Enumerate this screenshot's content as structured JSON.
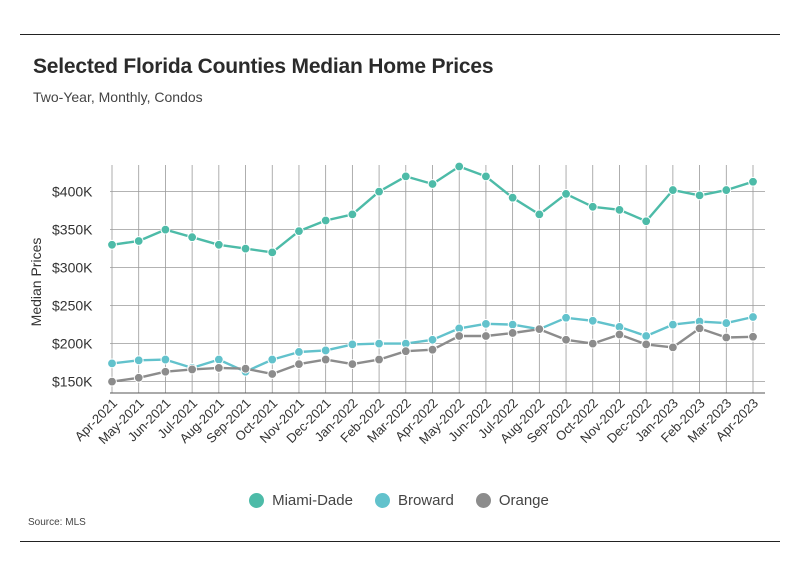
{
  "header": {
    "title": "Selected Florida Counties Median Home Prices",
    "subtitle": "Two-Year, Monthly, Condos"
  },
  "footer": {
    "source": "Source:  MLS"
  },
  "colors": {
    "miami_dade": "#4dbba8",
    "broward": "#62c2cc",
    "orange": "#8c8c8c",
    "grid": "#9a9a9a"
  },
  "chart_data": {
    "type": "line",
    "title": "Selected Florida Counties Median Home Prices",
    "subtitle": "Two-Year, Monthly, Condos",
    "xlabel": "",
    "ylabel": "Median Prices",
    "ylim": [
      135000,
      435000
    ],
    "yticks": [
      150000,
      200000,
      250000,
      300000,
      350000,
      400000
    ],
    "ytick_labels": [
      "$150K",
      "$200K",
      "$250K",
      "$300K",
      "$350K",
      "$400K"
    ],
    "grid": true,
    "legend_position": "bottom",
    "categories": [
      "Apr-2021",
      "May-2021",
      "Jun-2021",
      "Jul-2021",
      "Aug-2021",
      "Sep-2021",
      "Oct-2021",
      "Nov-2021",
      "Dec-2021",
      "Jan-2022",
      "Feb-2022",
      "Mar-2022",
      "Apr-2022",
      "May-2022",
      "Jun-2022",
      "Jul-2022",
      "Aug-2022",
      "Sep-2022",
      "Oct-2022",
      "Nov-2022",
      "Dec-2022",
      "Jan-2023",
      "Feb-2023",
      "Mar-2023",
      "Apr-2023"
    ],
    "series": [
      {
        "name": "Miami-Dade",
        "color": "#4dbba8",
        "values": [
          330000,
          335000,
          350000,
          340000,
          330000,
          325000,
          320000,
          348000,
          362000,
          370000,
          400000,
          420000,
          410000,
          433000,
          420000,
          392000,
          370000,
          397000,
          380000,
          376000,
          361000,
          402000,
          395000,
          402000,
          413000
        ]
      },
      {
        "name": "Broward",
        "color": "#62c2cc",
        "values": [
          174000,
          178000,
          179000,
          168000,
          179000,
          163000,
          179000,
          189000,
          191000,
          199000,
          200000,
          200000,
          205000,
          220000,
          226000,
          225000,
          219000,
          234000,
          230000,
          222000,
          210000,
          225000,
          229000,
          227000,
          235000
        ]
      },
      {
        "name": "Orange",
        "color": "#8c8c8c",
        "values": [
          150000,
          155000,
          163000,
          166000,
          168000,
          167000,
          160000,
          173000,
          179000,
          173000,
          179000,
          190000,
          192000,
          210000,
          210000,
          214000,
          219000,
          205000,
          200000,
          212000,
          199000,
          195000,
          220000,
          208000,
          209000
        ]
      }
    ]
  }
}
